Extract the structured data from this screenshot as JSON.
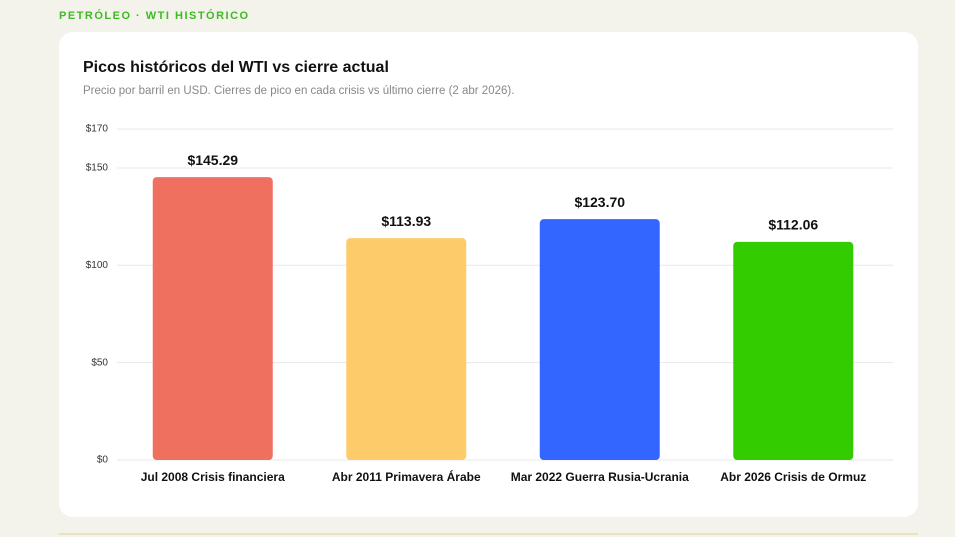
{
  "header": {
    "kicker": "PETRÓLEO · WTI HISTÓRICO"
  },
  "chart_data": {
    "type": "bar",
    "title": "Picos históricos del WTI vs cierre actual",
    "subtitle": "Precio por barril en USD. Cierres de pico en cada crisis vs último cierre (2 abr 2026).",
    "categories": [
      "Jul 2008 Crisis financiera",
      "Abr 2011 Primavera Árabe",
      "Mar 2022 Guerra Rusia-Ucrania",
      "Abr 2026 Crisis de Ormuz"
    ],
    "values": [
      145.29,
      113.93,
      123.7,
      112.06
    ],
    "value_labels": [
      "$145.29",
      "$113.93",
      "$123.70",
      "$112.06"
    ],
    "colors": [
      "#f07060",
      "#fdcb6a",
      "#3366ff",
      "#33cc00"
    ],
    "ylim": [
      0,
      170
    ],
    "yticks": [
      {
        "value": 0,
        "label": "$0"
      },
      {
        "value": 50,
        "label": "$50"
      },
      {
        "value": 100,
        "label": "$100"
      },
      {
        "value": 150,
        "label": "$150"
      },
      {
        "value": 170,
        "label": "$170"
      }
    ],
    "grid": true
  }
}
